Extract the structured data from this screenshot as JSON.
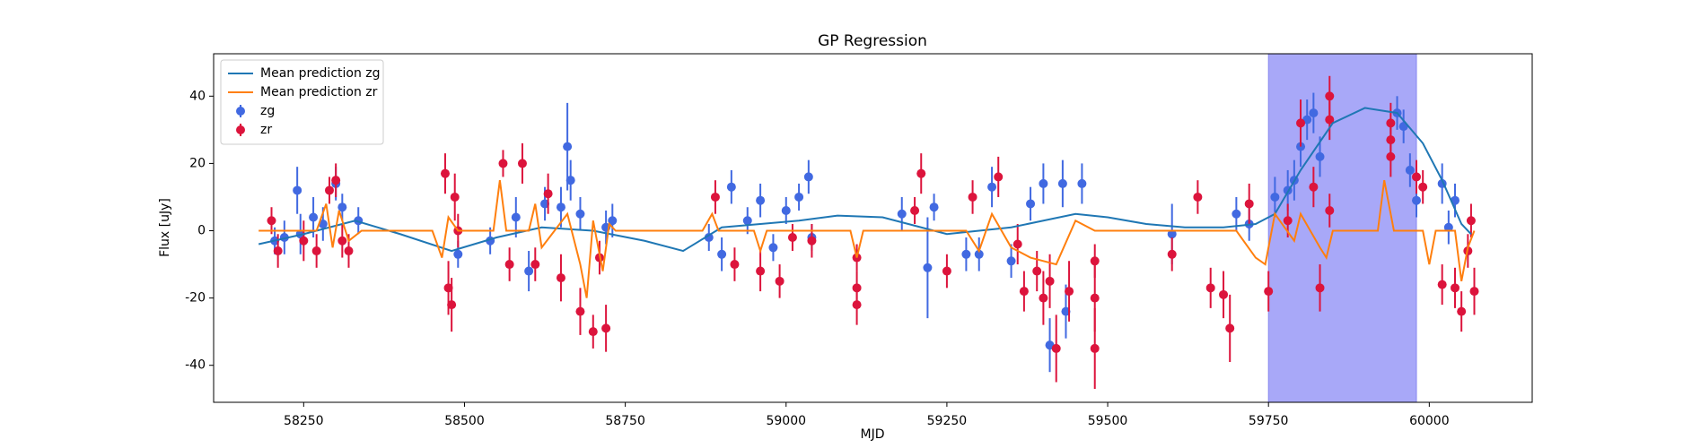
{
  "chart_data": {
    "type": "scatter",
    "title": "GP Regression",
    "x_label": "MJD",
    "y_label": "Flux [uJy]",
    "xlim": [
      58110,
      60160
    ],
    "ylim": [
      -51,
      52.6
    ],
    "xticks": [
      58250,
      58500,
      58750,
      59000,
      59250,
      59500,
      59750,
      60000
    ],
    "yticks": [
      -40,
      -20,
      0,
      20,
      40
    ],
    "legend": "upper left",
    "spans": [
      {
        "x": [
          59750,
          59980
        ],
        "color": "#a8a8f8"
      }
    ],
    "series": [
      {
        "name": "Mean prediction zg",
        "type": "line",
        "color": "#1f77b4",
        "x": [
          58180,
          58250,
          58330,
          58400,
          58480,
          58550,
          58620,
          58700,
          58780,
          58840,
          58900,
          58960,
          59020,
          59080,
          59150,
          59210,
          59250,
          59300,
          59350,
          59400,
          59450,
          59500,
          59560,
          59620,
          59680,
          59730,
          59760,
          59800,
          59850,
          59900,
          59950,
          59990,
          60020,
          60050,
          60065
        ],
        "values": [
          -4,
          -1,
          3,
          -1,
          -6,
          -2,
          1,
          0,
          -3,
          -6,
          1,
          2,
          3,
          4.5,
          4,
          1,
          -1,
          0,
          1,
          3,
          5,
          4,
          2,
          1,
          1,
          2,
          5,
          18,
          32,
          36.5,
          35,
          26,
          15,
          2,
          -1
        ]
      },
      {
        "name": "Mean prediction zr",
        "type": "line",
        "color": "#ff7f0e",
        "x": [
          58180,
          58270,
          58285,
          58295,
          58305,
          58320,
          58340,
          58450,
          58465,
          58475,
          58490,
          58545,
          58555,
          58565,
          58600,
          58610,
          58620,
          58660,
          58680,
          58690,
          58700,
          58715,
          58725,
          58735,
          58870,
          58885,
          58895,
          58950,
          58960,
          58970,
          59100,
          59110,
          59120,
          59280,
          59300,
          59320,
          59350,
          59380,
          59420,
          59450,
          59480,
          59700,
          59730,
          59745,
          59760,
          59790,
          59800,
          59830,
          59840,
          59850,
          59920,
          59930,
          59945,
          59960,
          59990,
          60000,
          60010,
          60040,
          60050,
          60060,
          60070
        ],
        "values": [
          0,
          0,
          8,
          -5,
          6,
          -3,
          0,
          0,
          -8,
          4,
          0,
          0,
          15,
          0,
          0,
          8,
          -5,
          5,
          -10,
          -20,
          3,
          -12,
          2,
          0,
          0,
          5,
          0,
          0,
          -6,
          0,
          0,
          -8,
          0,
          0,
          -6,
          5,
          -5,
          -8,
          -10,
          3,
          0,
          0,
          -8,
          -10,
          5,
          -3,
          5,
          -5,
          -8,
          0,
          0,
          15,
          0,
          0,
          0,
          -10,
          0,
          0,
          -15,
          -5,
          0
        ]
      },
      {
        "name": "zg",
        "type": "errorbar",
        "color": "#4169e1",
        "x": [
          58205,
          58220,
          58240,
          58245,
          58265,
          58280,
          58300,
          58310,
          58335,
          58490,
          58540,
          58580,
          58600,
          58625,
          58650,
          58660,
          58665,
          58680,
          58720,
          58730,
          58880,
          58900,
          58915,
          58940,
          58960,
          58980,
          59000,
          59020,
          59035,
          59040,
          59180,
          59220,
          59230,
          59280,
          59300,
          59320,
          59350,
          59380,
          59400,
          59410,
          59430,
          59435,
          59460,
          59600,
          59700,
          59720,
          59760,
          59780,
          59790,
          59800,
          59810,
          59820,
          59830,
          59950,
          59960,
          59970,
          59980,
          60020,
          60030,
          60040
        ],
        "values": [
          -3,
          -2,
          12,
          -1,
          4,
          2,
          14,
          7,
          3,
          -7,
          -3,
          4,
          -12,
          8,
          7,
          25,
          15,
          5,
          1,
          3,
          -2,
          -7,
          13,
          3,
          9,
          -5,
          6,
          10,
          16,
          -2,
          5,
          -11,
          7,
          -7,
          -7,
          13,
          -9,
          8,
          14,
          -34,
          14,
          -24,
          14,
          -1,
          5,
          2,
          10,
          12,
          15,
          25,
          33,
          35,
          22,
          35,
          31,
          18,
          9,
          14,
          1,
          9
        ],
        "errors": [
          4,
          5,
          7,
          6,
          6,
          5,
          5,
          4,
          4,
          4,
          4,
          6,
          6,
          5,
          6,
          13,
          6,
          5,
          5,
          5,
          4,
          5,
          5,
          4,
          5,
          4,
          4,
          4,
          5,
          4,
          5,
          15,
          4,
          5,
          5,
          6,
          5,
          5,
          6,
          8,
          7,
          8,
          6,
          9,
          5,
          5,
          6,
          6,
          6,
          6,
          6,
          6,
          6,
          5,
          5,
          5,
          5,
          6,
          5,
          5
        ]
      },
      {
        "name": "zr",
        "type": "errorbar",
        "color": "#dc143c",
        "x": [
          58200,
          58210,
          58250,
          58270,
          58290,
          58300,
          58310,
          58320,
          58470,
          58475,
          58480,
          58485,
          58490,
          58560,
          58570,
          58590,
          58610,
          58630,
          58650,
          58680,
          58700,
          58710,
          58720,
          58890,
          58920,
          58960,
          58990,
          59010,
          59040,
          59110,
          59110,
          59110,
          59200,
          59210,
          59250,
          59290,
          59330,
          59360,
          59370,
          59390,
          59400,
          59410,
          59420,
          59440,
          59480,
          59480,
          59480,
          59600,
          59640,
          59660,
          59680,
          59690,
          59720,
          59750,
          59780,
          59800,
          59820,
          59830,
          59845,
          59845,
          59845,
          59940,
          59940,
          59940,
          59980,
          59990,
          60020,
          60040,
          60050,
          60060,
          60065,
          60070
        ],
        "values": [
          3,
          -6,
          -3,
          -6,
          12,
          15,
          -3,
          -6,
          17,
          -17,
          -22,
          10,
          0,
          20,
          -10,
          20,
          -10,
          11,
          -14,
          -24,
          -30,
          -8,
          -29,
          10,
          -10,
          -12,
          -15,
          -2,
          -3,
          -17,
          -22,
          -8,
          6,
          17,
          -12,
          10,
          16,
          -4,
          -18,
          -12,
          -20,
          -15,
          -35,
          -18,
          -9,
          -20,
          -35,
          -7,
          10,
          -17,
          -19,
          -29,
          8,
          -18,
          3,
          32,
          13,
          -17,
          40,
          33,
          6,
          32,
          27,
          22,
          16,
          13,
          -16,
          -17,
          -24,
          -6,
          3,
          -18
        ],
        "errors": [
          4,
          5,
          6,
          5,
          4,
          5,
          5,
          5,
          6,
          8,
          8,
          7,
          5,
          4,
          5,
          6,
          5,
          6,
          7,
          7,
          5,
          5,
          7,
          5,
          5,
          6,
          5,
          4,
          5,
          5,
          6,
          4,
          4,
          6,
          5,
          5,
          6,
          6,
          6,
          6,
          8,
          8,
          10,
          9,
          5,
          10,
          12,
          5,
          5,
          6,
          7,
          10,
          6,
          6,
          5,
          7,
          6,
          7,
          6,
          6,
          5,
          6,
          6,
          6,
          5,
          5,
          6,
          6,
          6,
          5,
          5,
          7
        ]
      }
    ]
  }
}
